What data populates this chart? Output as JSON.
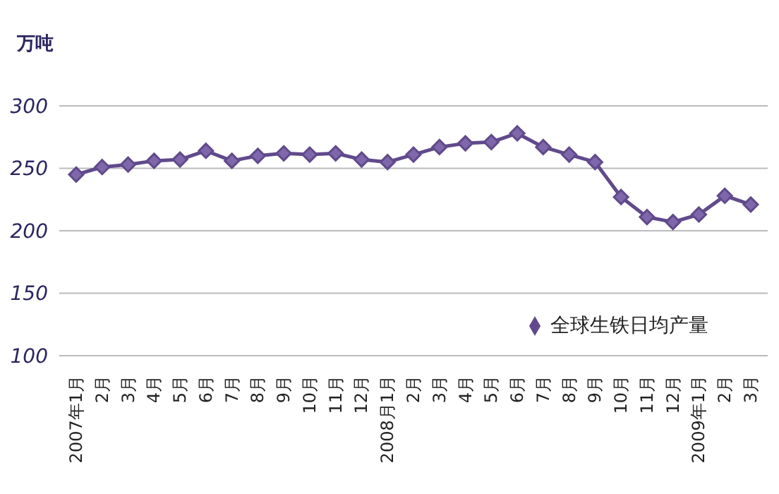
{
  "chart_data": {
    "type": "line",
    "ylabel": "万吨",
    "categories": [
      "2007年1月",
      "2月",
      "3月",
      "4月",
      "5月",
      "6月",
      "7月",
      "8月",
      "9月",
      "10月",
      "11月",
      "12月",
      "2008月1月",
      "2月",
      "3月",
      "4月",
      "5月",
      "6月",
      "7月",
      "8月",
      "9月",
      "10月",
      "11月",
      "12月",
      "2009年1月",
      "2月",
      "3月"
    ],
    "series": [
      {
        "name": "全球生铁日均产量",
        "color": "#604a8b",
        "values": [
          245,
          251,
          253,
          256,
          257,
          264,
          256,
          260,
          262,
          261,
          262,
          257,
          255,
          261,
          267,
          270,
          271,
          278,
          267,
          261,
          255,
          227,
          211,
          207,
          213,
          228,
          221
        ]
      }
    ],
    "ylim": [
      100,
      300
    ],
    "yticks": [
      100,
      150,
      200,
      250,
      300
    ],
    "grid": "y",
    "legend": "bottom right",
    "marker": "diamond",
    "line_style": "solid"
  }
}
